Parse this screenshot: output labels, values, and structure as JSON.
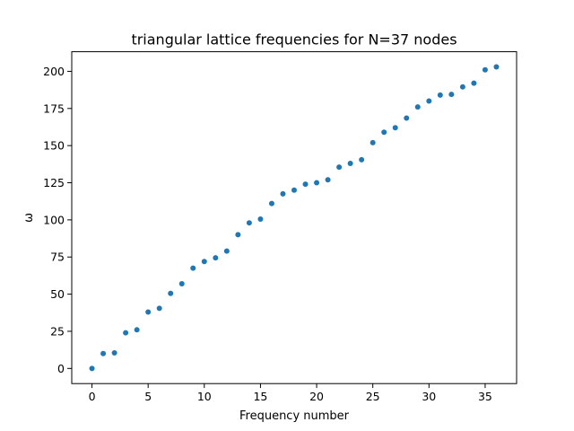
{
  "chart_data": {
    "type": "scatter",
    "title": "triangular lattice frequencies for N=37 nodes",
    "xlabel": "Frequency number",
    "ylabel": "ω",
    "xlim": [
      -1.8,
      37.8
    ],
    "ylim": [
      -10.2,
      213.2
    ],
    "x_ticks": [
      0,
      5,
      10,
      15,
      20,
      25,
      30,
      35
    ],
    "y_ticks": [
      0,
      25,
      50,
      75,
      100,
      125,
      150,
      175,
      200
    ],
    "grid": false,
    "color": "#1f77b4",
    "x": [
      0,
      1,
      2,
      3,
      4,
      5,
      6,
      7,
      8,
      9,
      10,
      11,
      12,
      13,
      14,
      15,
      16,
      17,
      18,
      19,
      20,
      21,
      22,
      23,
      24,
      25,
      26,
      27,
      28,
      29,
      30,
      31,
      32,
      33,
      34,
      35,
      36
    ],
    "y": [
      0,
      10,
      10.5,
      24,
      26,
      38,
      40.5,
      50.5,
      57,
      67.5,
      72,
      74.5,
      79,
      90,
      98,
      100.5,
      111,
      117.5,
      120,
      124,
      125,
      127,
      135.5,
      138,
      140.5,
      152,
      159,
      162,
      168.5,
      176,
      180,
      184,
      184.5,
      189.5,
      192,
      201,
      203
    ]
  }
}
